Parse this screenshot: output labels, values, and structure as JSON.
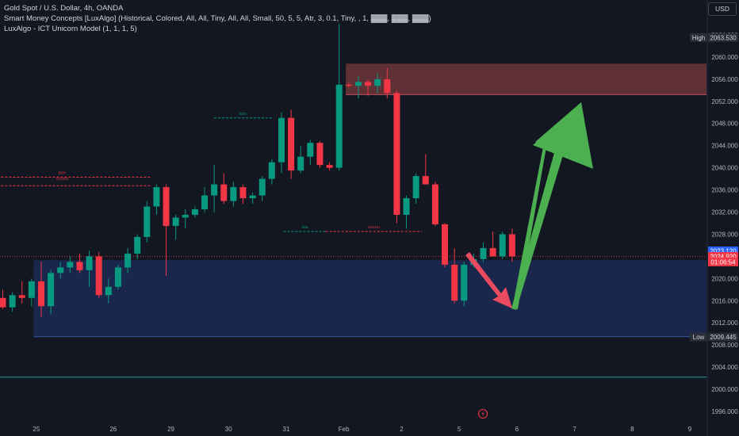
{
  "legend": {
    "line1": "Gold Spot / U.S. Dollar, 4h, OANDA",
    "line2": "Smart Money Concepts [LuxAlgo] (Historical, Colored, All, All, Tiny, All, All, Small, 50, 5, 5, Atr, 3, 0.1, Tiny, , 1, ▓▓▓, ▓▓▓, ▓▓▓)",
    "line3": "LuxAlgo - ICT Unicorn Model (1, 1, 1, 5)"
  },
  "currency_button": "USD",
  "colors": {
    "background": "#131722",
    "up": "#089981",
    "down": "#f23645",
    "supply_zone": "#7a3a3e",
    "demand_zone": "#1e2d5c",
    "arrow_green": "#4caf50",
    "arrow_red": "#e84a5f"
  },
  "chart_data": {
    "type": "candlestick",
    "symbol": "Gold Spot / U.S. Dollar",
    "interval": "4h",
    "ylim": [
      1995,
      2066
    ],
    "y_ticks": [
      1996.0,
      2000.0,
      2004.0,
      2008.0,
      2012.0,
      2016.0,
      2020.0,
      2024.0,
      2028.0,
      2032.0,
      2036.0,
      2040.0,
      2044.0,
      2048.0,
      2052.0,
      2056.0,
      2060.0,
      2064.0
    ],
    "x_ticks": [
      {
        "label": "25",
        "index": 3
      },
      {
        "label": "26",
        "index": 11
      },
      {
        "label": "29",
        "index": 17
      },
      {
        "label": "30",
        "index": 23
      },
      {
        "label": "31",
        "index": 29
      },
      {
        "label": "Feb",
        "index": 35
      },
      {
        "label": "2",
        "index": 41
      },
      {
        "label": "5",
        "index": 47
      },
      {
        "label": "6",
        "index": 53
      },
      {
        "label": "7",
        "index": 59
      },
      {
        "label": "8",
        "index": 65
      },
      {
        "label": "9",
        "index": 71
      }
    ],
    "candles": [
      {
        "o": 2016.5,
        "h": 2018.0,
        "l": 2014.5,
        "c": 2014.8
      },
      {
        "o": 2014.8,
        "h": 2017.5,
        "l": 2014.0,
        "c": 2017.0
      },
      {
        "o": 2017.0,
        "h": 2019.5,
        "l": 2015.5,
        "c": 2016.5
      },
      {
        "o": 2016.5,
        "h": 2020.0,
        "l": 2015.0,
        "c": 2019.5
      },
      {
        "o": 2019.5,
        "h": 2023.0,
        "l": 2013.0,
        "c": 2015.0
      },
      {
        "o": 2015.0,
        "h": 2021.5,
        "l": 2013.5,
        "c": 2021.0
      },
      {
        "o": 2021.0,
        "h": 2023.0,
        "l": 2020.0,
        "c": 2022.0
      },
      {
        "o": 2022.0,
        "h": 2024.0,
        "l": 2021.0,
        "c": 2023.0
      },
      {
        "o": 2023.0,
        "h": 2024.5,
        "l": 2021.0,
        "c": 2021.5
      },
      {
        "o": 2021.5,
        "h": 2025.0,
        "l": 2018.5,
        "c": 2024.0
      },
      {
        "o": 2024.0,
        "h": 2024.8,
        "l": 2016.5,
        "c": 2017.0
      },
      {
        "o": 2017.0,
        "h": 2020.0,
        "l": 2015.5,
        "c": 2018.5
      },
      {
        "o": 2018.5,
        "h": 2022.5,
        "l": 2018.0,
        "c": 2022.0
      },
      {
        "o": 2022.0,
        "h": 2025.5,
        "l": 2021.0,
        "c": 2024.5
      },
      {
        "o": 2024.5,
        "h": 2028.0,
        "l": 2023.5,
        "c": 2027.5
      },
      {
        "o": 2027.5,
        "h": 2034.0,
        "l": 2026.5,
        "c": 2033.0
      },
      {
        "o": 2033.0,
        "h": 2037.0,
        "l": 2031.5,
        "c": 2036.5
      },
      {
        "o": 2036.5,
        "h": 2037.0,
        "l": 2020.5,
        "c": 2029.5
      },
      {
        "o": 2029.5,
        "h": 2031.5,
        "l": 2027.0,
        "c": 2031.0
      },
      {
        "o": 2031.0,
        "h": 2032.5,
        "l": 2029.0,
        "c": 2031.5
      },
      {
        "o": 2031.5,
        "h": 2033.0,
        "l": 2031.0,
        "c": 2032.5
      },
      {
        "o": 2032.5,
        "h": 2036.5,
        "l": 2032.0,
        "c": 2035.0
      },
      {
        "o": 2035.0,
        "h": 2040.5,
        "l": 2032.0,
        "c": 2037.0
      },
      {
        "o": 2037.0,
        "h": 2039.0,
        "l": 2033.5,
        "c": 2034.0
      },
      {
        "o": 2034.0,
        "h": 2037.5,
        "l": 2033.0,
        "c": 2036.5
      },
      {
        "o": 2036.5,
        "h": 2037.0,
        "l": 2033.5,
        "c": 2034.5
      },
      {
        "o": 2034.5,
        "h": 2035.5,
        "l": 2033.5,
        "c": 2035.0
      },
      {
        "o": 2035.0,
        "h": 2038.5,
        "l": 2034.0,
        "c": 2038.0
      },
      {
        "o": 2038.0,
        "h": 2041.5,
        "l": 2037.0,
        "c": 2041.0
      },
      {
        "o": 2041.0,
        "h": 2050.0,
        "l": 2039.0,
        "c": 2049.0
      },
      {
        "o": 2049.0,
        "h": 2050.5,
        "l": 2038.0,
        "c": 2039.5
      },
      {
        "o": 2039.5,
        "h": 2044.0,
        "l": 2039.0,
        "c": 2042.0
      },
      {
        "o": 2042.0,
        "h": 2045.0,
        "l": 2040.5,
        "c": 2044.5
      },
      {
        "o": 2044.5,
        "h": 2044.8,
        "l": 2040.0,
        "c": 2040.5
      },
      {
        "o": 2040.5,
        "h": 2041.0,
        "l": 2039.5,
        "c": 2040.0
      },
      {
        "o": 2040.0,
        "h": 2066.0,
        "l": 2039.5,
        "c": 2055.0
      },
      {
        "o": 2055.0,
        "h": 2055.5,
        "l": 2054.5,
        "c": 2054.8
      },
      {
        "o": 2054.8,
        "h": 2056.5,
        "l": 2052.5,
        "c": 2055.5
      },
      {
        "o": 2055.5,
        "h": 2056.0,
        "l": 2053.0,
        "c": 2054.8
      },
      {
        "o": 2054.8,
        "h": 2057.0,
        "l": 2053.5,
        "c": 2056.0
      },
      {
        "o": 2056.0,
        "h": 2058.0,
        "l": 2052.5,
        "c": 2053.5
      },
      {
        "o": 2053.5,
        "h": 2054.0,
        "l": 2030.0,
        "c": 2031.5
      },
      {
        "o": 2031.5,
        "h": 2035.0,
        "l": 2029.0,
        "c": 2034.5
      },
      {
        "o": 2034.5,
        "h": 2039.0,
        "l": 2033.5,
        "c": 2038.5
      },
      {
        "o": 2038.5,
        "h": 2042.5,
        "l": 2037.5,
        "c": 2037.0
      },
      {
        "o": 2037.0,
        "h": 2037.5,
        "l": 2029.5,
        "c": 2029.8
      },
      {
        "o": 2029.8,
        "h": 2030.0,
        "l": 2022.0,
        "c": 2022.5
      },
      {
        "o": 2022.5,
        "h": 2025.5,
        "l": 2015.5,
        "c": 2016.0
      },
      {
        "o": 2016.0,
        "h": 2023.0,
        "l": 2015.0,
        "c": 2022.5
      },
      {
        "o": 2022.5,
        "h": 2024.5,
        "l": 2022.0,
        "c": 2023.5
      },
      {
        "o": 2023.5,
        "h": 2026.5,
        "l": 2023.0,
        "c": 2025.5
      },
      {
        "o": 2025.5,
        "h": 2028.5,
        "l": 2024.0,
        "c": 2024.0
      },
      {
        "o": 2024.0,
        "h": 2028.5,
        "l": 2023.5,
        "c": 2028.0
      },
      {
        "o": 2028.0,
        "h": 2029.0,
        "l": 2023.0,
        "c": 2024.0
      }
    ],
    "zones": [
      {
        "name": "supply-zone",
        "start": 35.7,
        "end": 73.5,
        "top": 2058.8,
        "bottom": 2053.2,
        "color": "#7a3a3e"
      },
      {
        "name": "demand-zone",
        "start": 3.2,
        "end": 73.5,
        "top": 2023.3,
        "bottom": 2009.5,
        "color": "#1e2d5c"
      }
    ],
    "structure_labels": [
      {
        "text": "BOS",
        "index": 25,
        "price": 2049.0,
        "line_from": 22,
        "line_to": 28
      },
      {
        "text": "BSH",
        "index": 6.2,
        "price": 2038.3,
        "line_from": -1,
        "line_to": 15.5
      },
      {
        "text": "CHoCH",
        "index": 6.2,
        "price": 2037.2,
        "line_from": -1,
        "line_to": 15.5
      },
      {
        "text": "BSL",
        "index": 31.5,
        "price": 2028.5,
        "line_from": 29.2,
        "line_to": 33.6
      },
      {
        "text": "CHoCH",
        "index": 38.6,
        "price": 2028.5,
        "line_from": 33.6,
        "line_to": 43.6
      }
    ],
    "horizontal_lines": [
      {
        "name": "bottom-level",
        "price": 2002.2,
        "color": "#2a9d8f"
      },
      {
        "name": "current-price-line",
        "price": 2024.0,
        "color": "#f23645"
      }
    ],
    "price_labels": [
      {
        "name": "high",
        "tag": "High",
        "value": "2063.530",
        "price": 2063.53
      },
      {
        "name": "last-price",
        "value": "2023.120",
        "price": 2025.0
      },
      {
        "name": "bid",
        "value": "2024.920",
        "price": 2024.0
      },
      {
        "name": "countdown",
        "value": "01:06:54",
        "price": 2023.0
      },
      {
        "name": "low",
        "tag": "Low",
        "value": "2009.445",
        "price": 2009.445
      }
    ]
  }
}
